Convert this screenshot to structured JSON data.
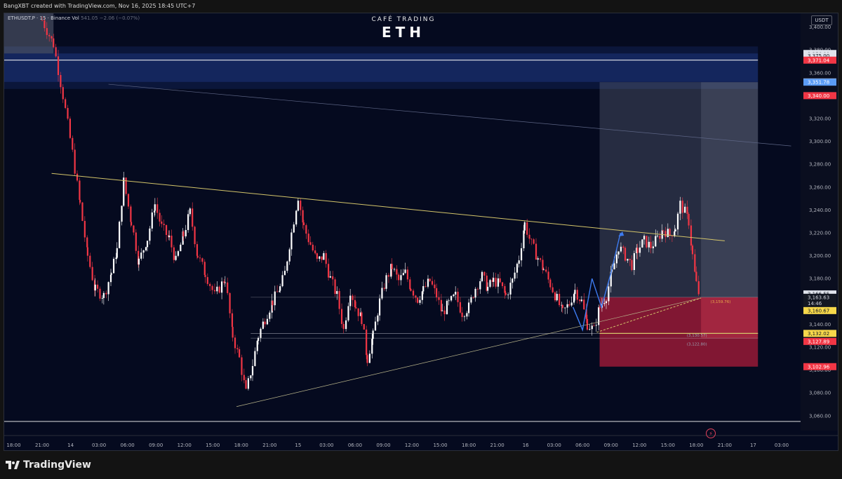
{
  "header": {
    "credit": "BangXBT created with TradingView.com, Nov 16, 2025 18:45 UTC+7"
  },
  "symbol": {
    "name": "ETHUSDT.P · 15 · Binance",
    "volume_label": "Vol",
    "change": "541.05 −2.06 (−0.07%)"
  },
  "branding": {
    "subtitle": "CAFÉ TRADING",
    "title": "ETH"
  },
  "currency": "USDT",
  "footer": {
    "logo_text": "TradingView"
  },
  "icons": {
    "flash": "flash-icon",
    "logo": "tradingview-logo-icon"
  },
  "colors": {
    "background": "#050a1f",
    "bull_candle": "#ffffff",
    "bear_candle": "#f23645",
    "trendline": "#d4c56a",
    "supply_zone": "#1e3a8a",
    "target_zone": "#8c94a6",
    "stop_zone": "#b71c3c",
    "projection": "#3d7bf0"
  },
  "chart_data": {
    "type": "candlestick",
    "timeframe": "15",
    "ylim": [
      3047,
      3412
    ],
    "y_ticks": [
      3060,
      3080,
      3100,
      3120,
      3140,
      3160,
      3180,
      3200,
      3220,
      3240,
      3260,
      3280,
      3300,
      3320,
      3340,
      3360,
      3380,
      3400
    ],
    "y_tick_labels": [
      "3,060.00",
      "3,080.00",
      "3,100.00",
      "3,120.00",
      "3,140.00",
      "3,160.00",
      "3,180.00",
      "3,200.00",
      "3,220.00",
      "3,240.00",
      "3,260.00",
      "3,280.00",
      "3,300.00",
      "3,320.00",
      "3,340.00",
      "3,360.00",
      "3,380.00",
      "3,400.00"
    ],
    "x_labels": [
      "18:00",
      "21:00",
      "14",
      "03:00",
      "06:00",
      "09:00",
      "12:00",
      "15:00",
      "18:00",
      "21:00",
      "15",
      "03:00",
      "06:00",
      "09:00",
      "12:00",
      "15:00",
      "18:00",
      "21:00",
      "16",
      "03:00",
      "06:00",
      "09:00",
      "12:00",
      "15:00",
      "18:00",
      "21:00",
      "17",
      "03:00"
    ],
    "x_label_hours": [
      0,
      3,
      6,
      9,
      12,
      15,
      18,
      21,
      24,
      27,
      30,
      33,
      36,
      39,
      42,
      45,
      48,
      51,
      54,
      57,
      60,
      63,
      66,
      69,
      72,
      75,
      78,
      81
    ],
    "x_range_hours": [
      -1.0,
      83.0
    ],
    "close_path": [
      [
        3.0,
        3406
      ],
      [
        4.2,
        3385
      ],
      [
        5.2,
        3340
      ],
      [
        6.2,
        3290
      ],
      [
        7.0,
        3245
      ],
      [
        7.8,
        3200
      ],
      [
        8.6,
        3170
      ],
      [
        9.5,
        3165
      ],
      [
        10.3,
        3185
      ],
      [
        10.9,
        3205
      ],
      [
        11.6,
        3265
      ],
      [
        12.4,
        3230
      ],
      [
        13.2,
        3195
      ],
      [
        14.1,
        3215
      ],
      [
        14.9,
        3245
      ],
      [
        15.6,
        3225
      ],
      [
        16.4,
        3215
      ],
      [
        17.1,
        3195
      ],
      [
        17.9,
        3218
      ],
      [
        18.6,
        3238
      ],
      [
        19.4,
        3200
      ],
      [
        20.2,
        3185
      ],
      [
        21.2,
        3165
      ],
      [
        22.3,
        3180
      ],
      [
        23.1,
        3130
      ],
      [
        23.8,
        3110
      ],
      [
        24.5,
        3080
      ],
      [
        25.2,
        3105
      ],
      [
        25.8,
        3130
      ],
      [
        26.5,
        3145
      ],
      [
        27.3,
        3160
      ],
      [
        28.1,
        3172
      ],
      [
        28.6,
        3185
      ],
      [
        29.3,
        3220
      ],
      [
        30.0,
        3252
      ],
      [
        30.6,
        3225
      ],
      [
        31.3,
        3210
      ],
      [
        32.0,
        3195
      ],
      [
        32.7,
        3200
      ],
      [
        33.4,
        3180
      ],
      [
        34.1,
        3165
      ],
      [
        34.8,
        3135
      ],
      [
        35.5,
        3170
      ],
      [
        36.1,
        3155
      ],
      [
        36.7,
        3145
      ],
      [
        37.3,
        3110
      ],
      [
        37.9,
        3130
      ],
      [
        38.6,
        3160
      ],
      [
        39.3,
        3180
      ],
      [
        39.9,
        3190
      ],
      [
        40.6,
        3178
      ],
      [
        41.3,
        3185
      ],
      [
        41.9,
        3172
      ],
      [
        42.6,
        3162
      ],
      [
        43.2,
        3170
      ],
      [
        43.9,
        3178
      ],
      [
        44.6,
        3165
      ],
      [
        45.2,
        3150
      ],
      [
        45.9,
        3158
      ],
      [
        46.6,
        3165
      ],
      [
        47.3,
        3150
      ],
      [
        48.0,
        3155
      ],
      [
        48.7,
        3172
      ],
      [
        49.4,
        3182
      ],
      [
        50.0,
        3172
      ],
      [
        50.6,
        3178
      ],
      [
        51.3,
        3175
      ],
      [
        51.9,
        3165
      ],
      [
        52.6,
        3178
      ],
      [
        53.3,
        3198
      ],
      [
        53.9,
        3228
      ],
      [
        54.6,
        3210
      ],
      [
        55.3,
        3198
      ],
      [
        55.9,
        3188
      ],
      [
        56.6,
        3175
      ],
      [
        57.3,
        3162
      ],
      [
        57.9,
        3150
      ],
      [
        58.6,
        3158
      ],
      [
        59.2,
        3170
      ],
      [
        59.9,
        3160
      ],
      [
        60.5,
        3140
      ],
      [
        61.2,
        3135
      ],
      [
        61.8,
        3155
      ],
      [
        62.5,
        3165
      ],
      [
        63.1,
        3185
      ],
      [
        63.8,
        3208
      ],
      [
        64.5,
        3200
      ],
      [
        65.2,
        3192
      ],
      [
        65.8,
        3205
      ],
      [
        66.5,
        3213
      ],
      [
        67.2,
        3208
      ],
      [
        67.9,
        3215
      ],
      [
        68.5,
        3223
      ],
      [
        69.2,
        3218
      ],
      [
        69.8,
        3225
      ],
      [
        70.3,
        3245
      ],
      [
        70.8,
        3238
      ],
      [
        71.2,
        3230
      ],
      [
        71.6,
        3200
      ],
      [
        72.0,
        3175
      ],
      [
        72.4,
        3163
      ]
    ],
    "lines": [
      {
        "name": "descending-resistance",
        "points": [
          [
            4.0,
            3272
          ],
          [
            75.0,
            3213
          ]
        ]
      },
      {
        "name": "ascending-support",
        "points": [
          [
            23.5,
            3068
          ],
          [
            72.5,
            3163
          ]
        ]
      },
      {
        "name": "upper-trend",
        "points": [
          [
            10.0,
            3350
          ],
          [
            82.0,
            3296
          ]
        ]
      }
    ],
    "supply_zone": {
      "x": [
        -1.0,
        78.5
      ],
      "y": [
        3352,
        3376.88
      ]
    },
    "target_zone": {
      "x": [
        61.8,
        78.5
      ],
      "y": [
        3163.63,
        3351.78
      ]
    },
    "stop_zone": {
      "x": [
        61.8,
        78.5
      ],
      "y": [
        3102.96,
        3163.63
      ]
    },
    "reference_levels": [
      3371.04,
      3132.02,
      3127.89
    ],
    "annotations": [
      {
        "name": "target-level",
        "label": "(3,159.76)",
        "price": 3159.76
      },
      {
        "name": "support-level-1",
        "label": "(3,130.57)",
        "price": 3130.57
      },
      {
        "name": "support-level-2",
        "label": "(3,122.80)",
        "price": 3122.8
      }
    ],
    "projection_path": [
      [
        59.0,
        3155
      ],
      [
        60.0,
        3135
      ],
      [
        61.0,
        3180
      ],
      [
        62.0,
        3155
      ],
      [
        63.0,
        3185
      ],
      [
        64.0,
        3220
      ]
    ],
    "price_labels": [
      {
        "label": "3,376.88",
        "price": 3376.88,
        "style": "light"
      },
      {
        "label": "3,375.00",
        "price": 3375.0,
        "style": "light"
      },
      {
        "label": "3,371.04",
        "price": 3371.04,
        "style": "red"
      },
      {
        "label": "3,351.99",
        "price": 3351.99,
        "style": "light"
      },
      {
        "label": "3,351.78",
        "price": 3351.78,
        "style": "blue"
      },
      {
        "label": "3,340.00",
        "price": 3340.0,
        "style": "red"
      },
      {
        "label": "3,166.55",
        "price": 3166.55,
        "style": "light"
      },
      {
        "label": "3,163.63",
        "price": 3163.63,
        "style": "dark"
      },
      {
        "label": "14:46",
        "price": 3158.3,
        "style": "dark"
      },
      {
        "label": "3,160.67",
        "price": 3152.0,
        "style": "yellow"
      },
      {
        "label": "3,132.02",
        "price": 3132.02,
        "style": "yellow"
      },
      {
        "label": "3,127.89",
        "price": 3125.0,
        "style": "red"
      },
      {
        "label": "3,102.96",
        "price": 3102.96,
        "style": "red"
      }
    ]
  }
}
